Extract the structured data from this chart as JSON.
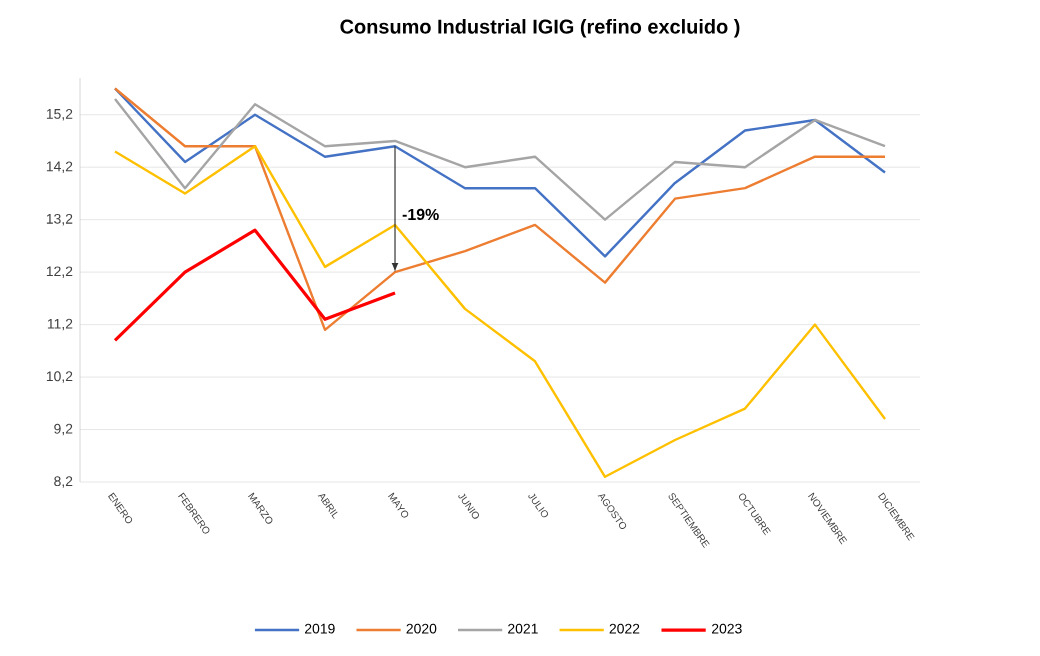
{
  "chart_data": {
    "type": "line",
    "title": "Consumo Industrial IGIG (refino excluido )",
    "categories": [
      "ENERO",
      "FEBRERO",
      "MARZO",
      "ABRIL",
      "MAYO",
      "JUNIO",
      "JULIO",
      "AGOSTO",
      "SEPTIEMBRE",
      "OCTUBRE",
      "NOVIEMBRE",
      "DICIEMBRE"
    ],
    "series": [
      {
        "name": "2019",
        "color": "#4472c4",
        "values": [
          15.7,
          14.3,
          15.2,
          14.4,
          14.6,
          13.8,
          13.8,
          12.5,
          13.9,
          14.9,
          15.1,
          14.1
        ]
      },
      {
        "name": "2020",
        "color": "#ed7d31",
        "values": [
          15.7,
          14.6,
          14.6,
          11.1,
          12.2,
          12.6,
          13.1,
          12.0,
          13.6,
          13.8,
          14.4,
          14.4
        ]
      },
      {
        "name": "2021",
        "color": "#a5a5a5",
        "values": [
          15.5,
          13.8,
          15.4,
          14.6,
          14.7,
          14.2,
          14.4,
          13.2,
          14.3,
          14.2,
          15.1,
          14.6
        ]
      },
      {
        "name": "2022",
        "color": "#ffc000",
        "values": [
          14.5,
          13.7,
          14.6,
          12.3,
          13.1,
          11.5,
          10.5,
          8.3,
          9.0,
          9.6,
          11.2,
          9.4
        ]
      },
      {
        "name": "2023",
        "color": "#ff0000",
        "values": [
          10.9,
          12.2,
          13.0,
          11.3,
          11.8,
          null,
          null,
          null,
          null,
          null,
          null,
          null
        ]
      }
    ],
    "annotations": [
      {
        "text": "-19%",
        "x": "MAYO",
        "y": 13.3
      }
    ],
    "ylim": [
      8.2,
      15.9
    ],
    "yticks": [
      {
        "value": 8.2,
        "label": "8,2"
      },
      {
        "value": 9.2,
        "label": "9,2"
      },
      {
        "value": 10.2,
        "label": "10,2"
      },
      {
        "value": 11.2,
        "label": "11,2"
      },
      {
        "value": 12.2,
        "label": "12,2"
      },
      {
        "value": 13.2,
        "label": "13,2"
      },
      {
        "value": 14.2,
        "label": "14,2"
      },
      {
        "value": 15.2,
        "label": "15,2"
      }
    ],
    "grid": "y",
    "legend": "bottom",
    "line_style": "solid",
    "marker": "none"
  }
}
